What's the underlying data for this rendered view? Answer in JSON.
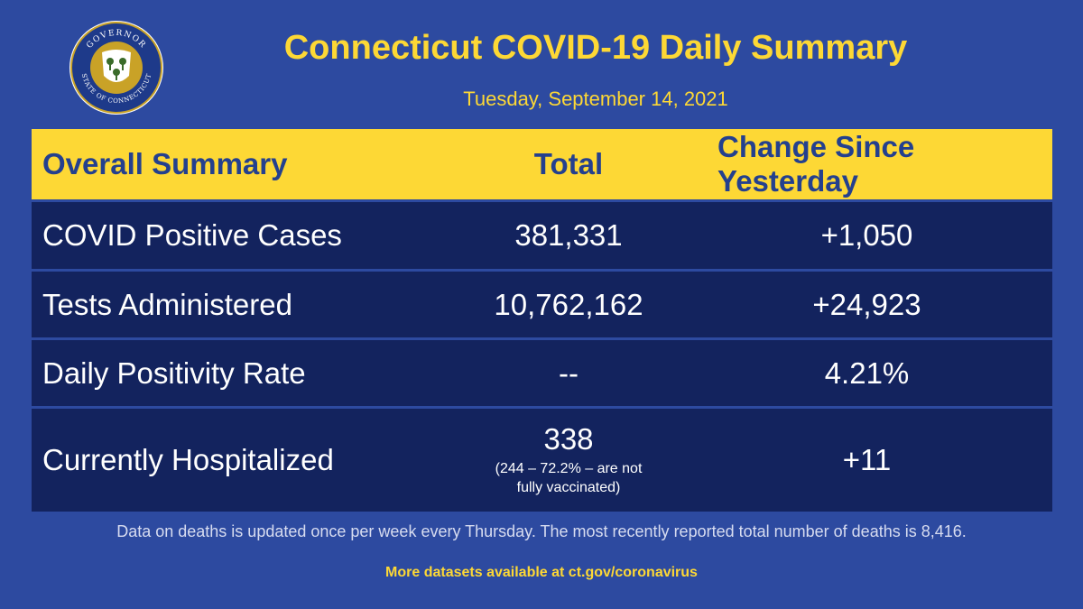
{
  "header": {
    "seal_top_text": "GOVERNOR",
    "seal_bottom_text": "STATE OF CONNECTICUT",
    "title": "Connecticut COVID-19 Daily Summary",
    "date": "Tuesday, September 14, 2021"
  },
  "table": {
    "columns": [
      "Overall Summary",
      "Total",
      "Change Since Yesterday"
    ],
    "rows": [
      {
        "label": "COVID Positive Cases",
        "total": "381,331",
        "change": "+1,050"
      },
      {
        "label": "Tests Administered",
        "total": "10,762,162",
        "change": "+24,923"
      },
      {
        "label": "Daily Positivity Rate",
        "total": "--",
        "change": "4.21%"
      },
      {
        "label": "Currently Hospitalized",
        "total": "338",
        "total_note_line1": "(244 – 72.2% – are not",
        "total_note_line2": "fully vaccinated)",
        "change": "+11"
      }
    ]
  },
  "footer": {
    "deaths_note": "Data on deaths is updated once per week every Thursday. The most recently reported total number of deaths is 8,416.",
    "more_datasets": "More datasets available at ct.gov/coronavirus"
  },
  "colors": {
    "background": "#2d4aa0",
    "accent_yellow": "#fdd835",
    "row_navy": "#13235e",
    "header_text": "#24408e"
  }
}
